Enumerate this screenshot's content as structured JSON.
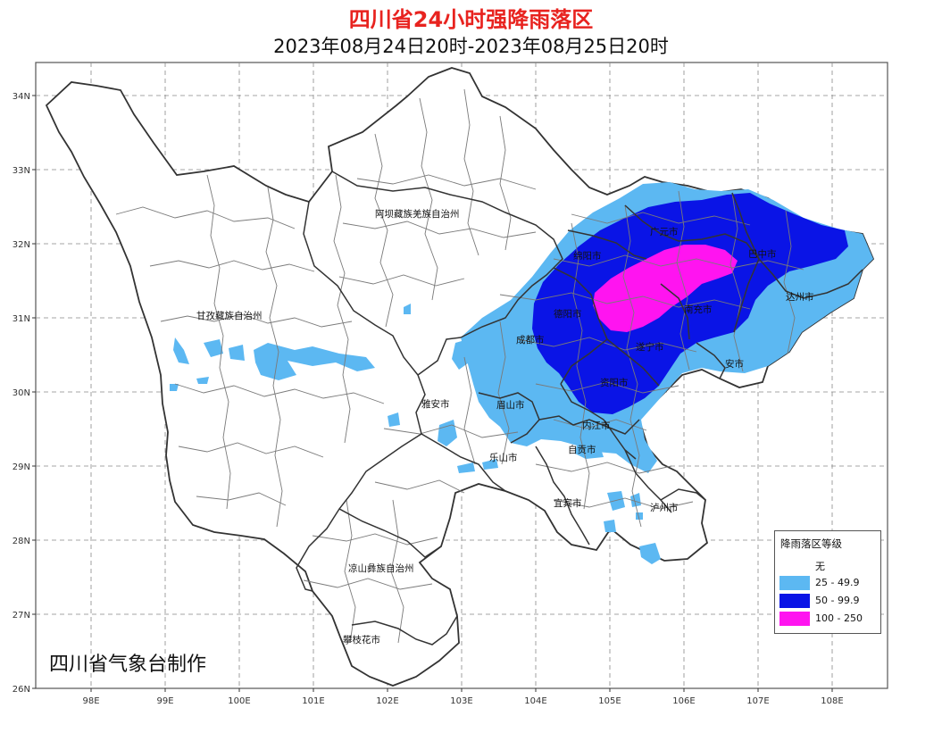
{
  "title": "四川省24小时强降雨落区",
  "subtitle": "2023年08月24日20时-2023年08月25日20时",
  "credit": "四川省气象台制作",
  "axes": {
    "lat_ticks": [
      "34N",
      "33N",
      "32N",
      "31N",
      "30N",
      "29N",
      "28N",
      "27N",
      "26N"
    ],
    "lon_ticks": [
      "98E",
      "99E",
      "100E",
      "101E",
      "102E",
      "103E",
      "104E",
      "105E",
      "106E",
      "107E",
      "108E"
    ],
    "lat_range": [
      26,
      34.8
    ],
    "lon_range": [
      97.3,
      108.7
    ],
    "grid": "dashed"
  },
  "places": {
    "aba": "阿坝藏族羌族自治州",
    "ganzi": "甘孜藏族自治州",
    "liangshan": "凉山彝族自治州",
    "panzhihua": "攀枝花市",
    "yaan": "雅安市",
    "meishan": "眉山市",
    "leshan": "乐山市",
    "chengdu": "成都市",
    "deyang": "德阳市",
    "mianyang": "绵阳市",
    "guangyuan": "广元市",
    "bazhong": "巴中市",
    "dazhou": "达州市",
    "nanchong": "南充市",
    "suining": "遂宁市",
    "ziyang": "资阳市",
    "neijiang": "内江市",
    "zigong": "自贡市",
    "yibin": "宜宾市",
    "luzhou": "泸州市",
    "guangan": "安市"
  },
  "legend": {
    "title": "降雨落区等级",
    "items": [
      {
        "label": "无",
        "color": "#ffffff"
      },
      {
        "label": "25 - 49.9",
        "color": "#5cb8f2"
      },
      {
        "label": "50 - 99.9",
        "color": "#0a14e6"
      },
      {
        "label": "100 - 250",
        "color": "#ff14f0"
      }
    ]
  },
  "colors": {
    "title": "#e8231f",
    "heavy_rain": "#5cb8f2",
    "rainstorm": "#0a14e6",
    "heavy_rainstorm": "#ff14f0",
    "border": "#333333"
  }
}
